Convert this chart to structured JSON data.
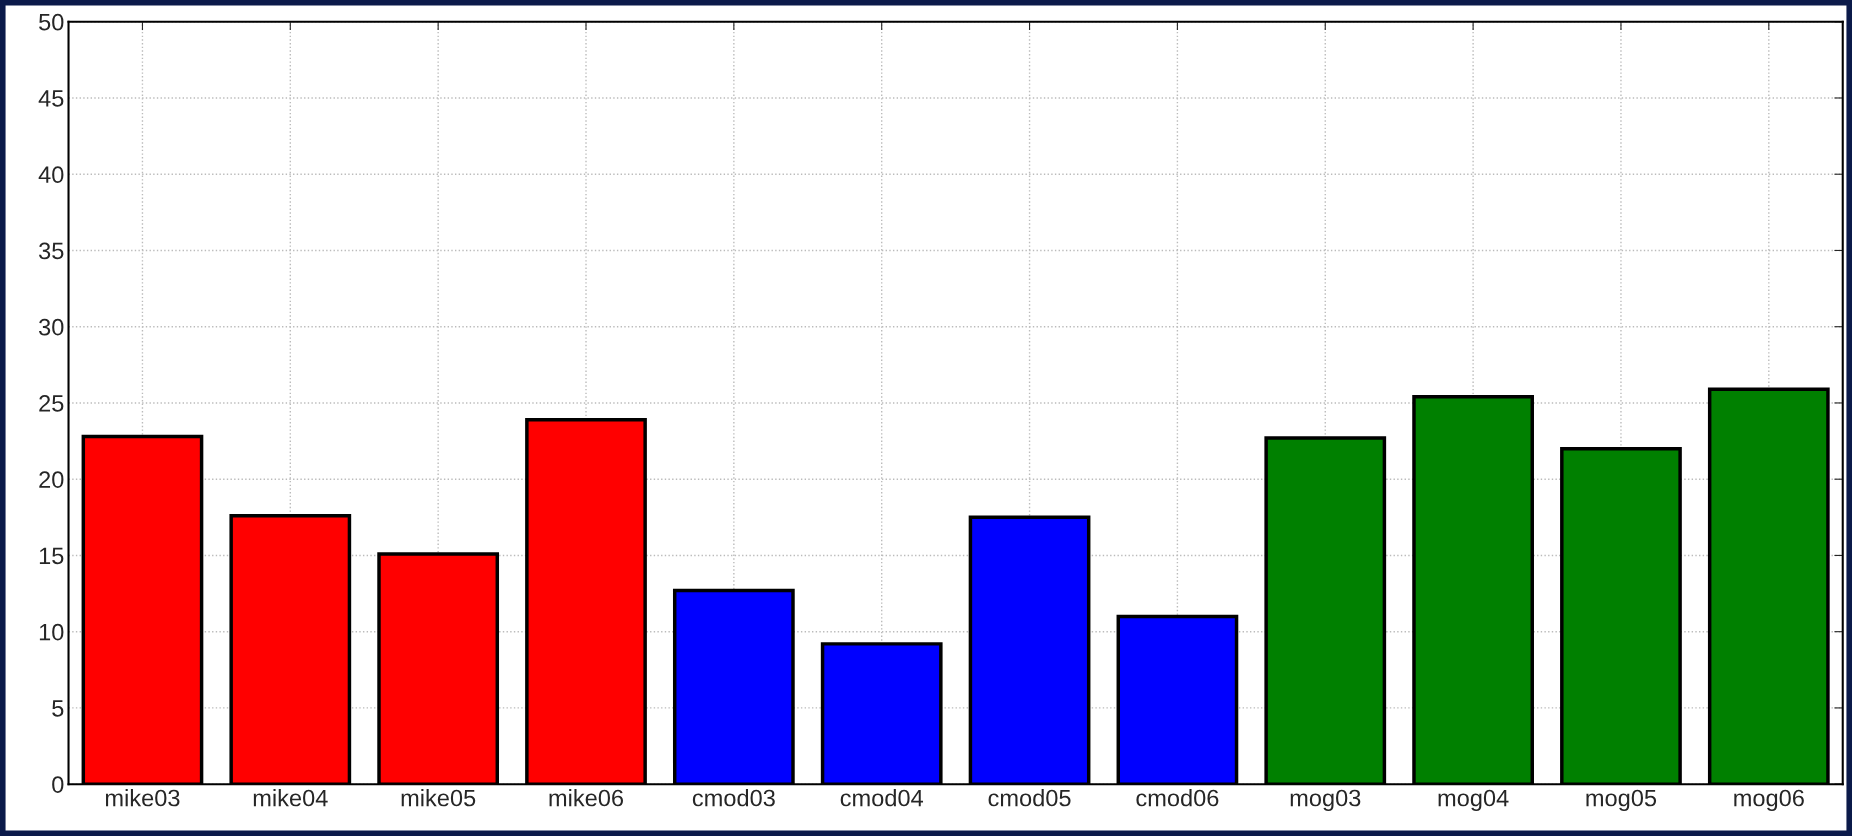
{
  "chart_data": {
    "type": "bar",
    "categories": [
      "mike03",
      "mike04",
      "mike05",
      "mike06",
      "cmod03",
      "cmod04",
      "cmod05",
      "cmod06",
      "mog03",
      "mog04",
      "mog05",
      "mog06"
    ],
    "values": [
      22.8,
      17.6,
      15.1,
      23.9,
      12.7,
      9.2,
      17.5,
      11.0,
      22.7,
      25.4,
      22.0,
      25.9
    ],
    "colors": [
      "#ff0000",
      "#ff0000",
      "#ff0000",
      "#ff0000",
      "#0000ff",
      "#0000ff",
      "#0000ff",
      "#0000ff",
      "#008000",
      "#008000",
      "#008000",
      "#008000"
    ],
    "ylim": [
      0,
      50
    ],
    "yticks": [
      0,
      5,
      10,
      15,
      20,
      25,
      30,
      35,
      40,
      45,
      50
    ],
    "grid": true
  }
}
